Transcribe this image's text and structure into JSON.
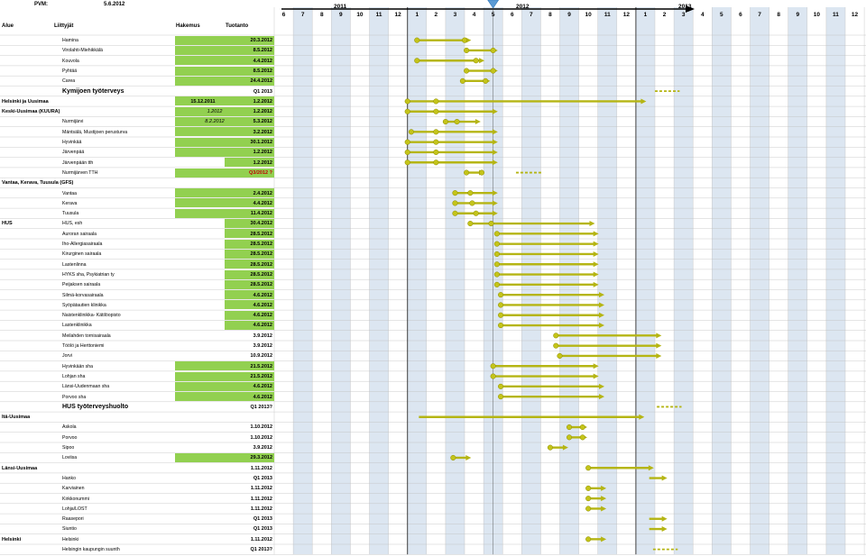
{
  "header": {
    "pvm_label": "PVM:",
    "pvm_value": "5.6.2012",
    "col_alue": "Alue",
    "col_liittyjat": "Liittyjät",
    "col_hakemus": "Hakemus",
    "col_tuotanto": "Tuotanto"
  },
  "timeline": {
    "years": [
      "2011",
      "2012",
      "2013"
    ],
    "months": [
      "6",
      "7",
      "8",
      "9",
      "10",
      "11",
      "12",
      "1",
      "2",
      "3",
      "4",
      "5",
      "6",
      "7",
      "8",
      "9",
      "10",
      "11",
      "12",
      "1",
      "2",
      "3",
      "4",
      "5",
      "6",
      "7",
      "8",
      "9",
      "10",
      "11",
      "12"
    ],
    "current_month_marker": "5"
  },
  "colors": {
    "contract_green": "#92d050",
    "bar_olive": "#b5b514",
    "stripe_blue": "#dce6f1",
    "grid_line": "#bfbfbf",
    "date_red": "#c00000"
  },
  "rows": [
    {
      "region": "",
      "org": "Hamina",
      "hakemus": "",
      "tuotanto": "20.3.2012",
      "green": true,
      "bar": [
        7.0,
        9.8
      ],
      "dots": [
        7.0,
        9.5
      ]
    },
    {
      "region": "",
      "org": "Virolahti-Miehikkälä",
      "hakemus": "",
      "tuotanto": "8.5.2012",
      "green": true,
      "bar": [
        9.5,
        11.2
      ],
      "dots": [
        9.6,
        11.0
      ]
    },
    {
      "region": "",
      "org": "Kouvola",
      "hakemus": "",
      "tuotanto": "4.4.2012",
      "green": true,
      "bar": [
        7.0,
        10.5
      ],
      "dots": [
        7.0,
        10.1
      ]
    },
    {
      "region": "",
      "org": "Pyhtää",
      "hakemus": "",
      "tuotanto": "8.5.2012",
      "green": true,
      "bar": [
        9.5,
        11.2
      ],
      "dots": [
        9.6,
        11.0
      ]
    },
    {
      "region": "",
      "org": "Carea",
      "hakemus": "",
      "tuotanto": "24.4.2012",
      "green": true,
      "bar": [
        9.3,
        10.8
      ],
      "dots": [
        9.4,
        10.6
      ]
    },
    {
      "region": "",
      "org": "Kymijoen työterveys",
      "big": true,
      "hakemus": "",
      "tuotanto": "Q1 2013",
      "green": false,
      "dashed": [
        19.5,
        20.8
      ]
    },
    {
      "region": "Helsinki ja Uusimaa",
      "org": "",
      "hakemus": "15.12.2011",
      "tuotanto": "1.2.2012",
      "green": true,
      "bar": [
        6.5,
        19.0
      ],
      "dots": [
        6.5,
        8.0
      ]
    },
    {
      "region": "Keski-Uusimaa (KUURA)",
      "org": "",
      "hakemus": "1.2012",
      "hakemusItalic": true,
      "tuotanto": "1.2.2012",
      "green": true,
      "bar": [
        6.5,
        11.2
      ],
      "dots": [
        6.5,
        8.0
      ]
    },
    {
      "region": "",
      "org": "Nurmijärvi",
      "hakemus": "8.2.2012",
      "hakemusItalic": true,
      "tuotanto": "5.3.2012",
      "green": true,
      "bar": [
        8.4,
        10.3
      ],
      "dots": [
        8.5,
        9.1
      ]
    },
    {
      "region": "",
      "org": "Mäntsälä, Mustijoen perusturva",
      "hakemus": "",
      "tuotanto": "3.2.2012",
      "green": true,
      "bar": [
        6.7,
        11.2
      ],
      "dots": [
        6.7,
        8.0
      ]
    },
    {
      "region": "",
      "org": "Hyvinkää",
      "hakemus": "",
      "tuotanto": "30.1.2012",
      "green": true,
      "bar": [
        6.5,
        11.2
      ],
      "dots": [
        6.5,
        8.0
      ]
    },
    {
      "region": "",
      "org": "Järvenpää",
      "hakemus": "",
      "tuotanto": "1.2.2012",
      "green": true,
      "bar": [
        6.5,
        11.2
      ],
      "dots": [
        6.5,
        8.0
      ]
    },
    {
      "region": "",
      "org": "Järvenpään tth",
      "hakemus": "",
      "tuotanto": "1.2.2012",
      "green": "partial",
      "bar": [
        6.5,
        11.2
      ],
      "dots": [
        6.5,
        8.0
      ]
    },
    {
      "region": "",
      "org": "Nurmijärven TTH",
      "hakemus": "",
      "tuotanto": "Q3/2012 ?",
      "red": true,
      "green": "partial",
      "bar": [
        9.6,
        10.5
      ],
      "dots": [
        9.6,
        10.4
      ],
      "dashed": [
        12.2,
        13.6
      ]
    },
    {
      "region": "Vantaa, Kerava, Tuusula (GFS)",
      "org": "",
      "hakemus": "",
      "tuotanto": "",
      "green": false
    },
    {
      "region": "",
      "org": "Vantaa",
      "hakemus": "",
      "tuotanto": "2.4.2012",
      "green": true,
      "bar": [
        9.0,
        11.2
      ],
      "dots": [
        9.0,
        9.8
      ]
    },
    {
      "region": "",
      "org": "Kerava",
      "hakemus": "",
      "tuotanto": "4.4.2012",
      "green": true,
      "bar": [
        9.0,
        11.2
      ],
      "dots": [
        9.0,
        9.9
      ]
    },
    {
      "region": "",
      "org": "Tuusula",
      "hakemus": "",
      "tuotanto": "11.4.2012",
      "green": true,
      "bar": [
        9.0,
        11.2
      ],
      "dots": [
        9.0,
        10.1
      ]
    },
    {
      "region": "HUS",
      "org": "HUS, esh",
      "hakemus": "",
      "tuotanto": "30.4.2012",
      "green": "partial",
      "bar": [
        9.8,
        16.3
      ],
      "dots": [
        9.8,
        10.9
      ]
    },
    {
      "region": "",
      "org": "Auroran sairaala",
      "hakemus": "",
      "tuotanto": "28.5.2012",
      "green": "partial",
      "bar": [
        11.2,
        16.5
      ],
      "dots": [
        11.2
      ]
    },
    {
      "region": "",
      "org": "Iho-Allergiasairaala",
      "hakemus": "",
      "tuotanto": "28.5.2012",
      "green": "partial",
      "bar": [
        11.2,
        16.5
      ],
      "dots": [
        11.2
      ]
    },
    {
      "region": "",
      "org": "Kirurginen sairaala",
      "hakemus": "",
      "tuotanto": "28.5.2012",
      "green": "partial",
      "bar": [
        11.2,
        16.5
      ],
      "dots": [
        11.2
      ]
    },
    {
      "region": "",
      "org": "Lastenlinna",
      "hakemus": "",
      "tuotanto": "28.5.2012",
      "green": "partial",
      "bar": [
        11.2,
        16.5
      ],
      "dots": [
        11.2
      ]
    },
    {
      "region": "",
      "org": "HYKS sha, Psykiatrian ty",
      "hakemus": "",
      "tuotanto": "28.5.2012",
      "green": "partial",
      "bar": [
        11.2,
        16.5
      ],
      "dots": [
        11.2
      ]
    },
    {
      "region": "",
      "org": "Peijaksen sairaala",
      "hakemus": "",
      "tuotanto": "28.5.2012",
      "green": "partial",
      "bar": [
        11.2,
        16.5
      ],
      "dots": [
        11.2
      ]
    },
    {
      "region": "",
      "org": "Silmä-korvasairaala",
      "hakemus": "",
      "tuotanto": "4.6.2012",
      "green": "partial",
      "bar": [
        11.4,
        16.8
      ],
      "dots": [
        11.4
      ]
    },
    {
      "region": "",
      "org": "Syöpätautien klinikka",
      "hakemus": "",
      "tuotanto": "4.6.2012",
      "green": "partial",
      "bar": [
        11.4,
        16.8
      ],
      "dots": [
        11.4
      ]
    },
    {
      "region": "",
      "org": "Naistenklinikka- Kätilöopisto",
      "hakemus": "",
      "tuotanto": "4.6.2012",
      "green": "partial",
      "bar": [
        11.4,
        16.8
      ],
      "dots": [
        11.4
      ]
    },
    {
      "region": "",
      "org": "Lastenklinikka",
      "hakemus": "",
      "tuotanto": "4.6.2012",
      "green": "partial",
      "bar": [
        11.4,
        16.8
      ],
      "dots": [
        11.4
      ]
    },
    {
      "region": "",
      "org": "Meilahden tornisairaala",
      "hakemus": "",
      "tuotanto": "3.9.2012",
      "green": false,
      "bar": [
        14.3,
        19.8
      ],
      "dots": [
        14.3
      ]
    },
    {
      "region": "",
      "org": "Töölö ja Herttoniemi",
      "hakemus": "",
      "tuotanto": "3.9.2012",
      "green": false,
      "bar": [
        14.3,
        19.8
      ],
      "dots": [
        14.3
      ]
    },
    {
      "region": "",
      "org": "Jorvi",
      "hakemus": "",
      "tuotanto": "10.9.2012",
      "green": false,
      "bar": [
        14.5,
        19.8
      ],
      "dots": [
        14.5
      ]
    },
    {
      "region": "",
      "org": "Hyvinkään sha",
      "hakemus": "",
      "tuotanto": "21.5.2012",
      "green": true,
      "bar": [
        11.0,
        16.5
      ],
      "dots": [
        11.0
      ]
    },
    {
      "region": "",
      "org": "Lohjan sha",
      "hakemus": "",
      "tuotanto": "21.5.2012",
      "green": true,
      "bar": [
        11.0,
        16.5
      ],
      "dots": [
        11.0
      ]
    },
    {
      "region": "",
      "org": "Länsi-Uudenmaan sha",
      "hakemus": "",
      "tuotanto": "4.6.2012",
      "green": true,
      "bar": [
        11.4,
        16.8
      ],
      "dots": [
        11.4
      ]
    },
    {
      "region": "",
      "org": "Porvoo sha",
      "hakemus": "",
      "tuotanto": "4.6.2012",
      "green": true,
      "bar": [
        11.4,
        16.8
      ],
      "dots": [
        11.4
      ]
    },
    {
      "region": "",
      "org": "HUS työterveyshuolto",
      "big": true,
      "hakemus": "",
      "tuotanto": "Q1 2013?",
      "green": false,
      "dashed": [
        19.6,
        20.9
      ]
    },
    {
      "region": "Itä-Uusimaa",
      "org": "",
      "hakemus": "",
      "tuotanto": "",
      "green": false,
      "bar": [
        7.1,
        18.9
      ],
      "dots": []
    },
    {
      "region": "",
      "org": "Askola",
      "hakemus": "",
      "tuotanto": "1.10.2012",
      "green": false,
      "bar": [
        15.0,
        15.9
      ],
      "dots": [
        15.0,
        15.7
      ]
    },
    {
      "region": "",
      "org": "Porvoo",
      "hakemus": "",
      "tuotanto": "1.10.2012",
      "green": false,
      "bar": [
        15.0,
        15.9
      ],
      "dots": [
        15.0,
        15.7
      ]
    },
    {
      "region": "",
      "org": "Sipoo",
      "hakemus": "",
      "tuotanto": "3.9.2012",
      "green": false,
      "bar": [
        14.0,
        14.9
      ],
      "dots": [
        14.0
      ]
    },
    {
      "region": "",
      "org": "Loviisa",
      "hakemus": "",
      "tuotanto": "29.3.2012",
      "green": true,
      "bar": [
        8.9,
        9.8
      ],
      "dots": [
        8.9
      ]
    },
    {
      "region": "Länsi-Uusimaa",
      "org": "",
      "hakemus": "",
      "tuotanto": "1.11.2012",
      "green": false,
      "bar": [
        16.0,
        19.4
      ],
      "dots": [
        16.0
      ]
    },
    {
      "region": "",
      "org": "Hanko",
      "hakemus": "",
      "tuotanto": "Q1 2013",
      "green": false,
      "bar": [
        19.2,
        20.1
      ],
      "dots": []
    },
    {
      "region": "",
      "org": "Karviainen",
      "hakemus": "",
      "tuotanto": "1.11.2012",
      "green": false,
      "bar": [
        16.0,
        16.9
      ],
      "dots": [
        16.0
      ]
    },
    {
      "region": "",
      "org": "Kirkkonummi",
      "hakemus": "",
      "tuotanto": "1.11.2012",
      "green": false,
      "bar": [
        16.0,
        16.9
      ],
      "dots": [
        16.0
      ]
    },
    {
      "region": "",
      "org": "Lohja/LOST",
      "hakemus": "",
      "tuotanto": "1.11.2012",
      "green": false,
      "bar": [
        16.0,
        16.9
      ],
      "dots": [
        16.0
      ]
    },
    {
      "region": "",
      "org": "Raasepori",
      "hakemus": "",
      "tuotanto": "Q1 2013",
      "green": false,
      "bar": [
        19.2,
        20.1
      ],
      "dots": []
    },
    {
      "region": "",
      "org": "Siuntio",
      "hakemus": "",
      "tuotanto": "Q1 2013",
      "green": false,
      "bar": [
        19.2,
        20.1
      ],
      "dots": []
    },
    {
      "region": "Helsinki",
      "org": "Helsinki",
      "hakemus": "",
      "tuotanto": "1.11.2012",
      "green": false,
      "bar": [
        16.0,
        16.9
      ],
      "dots": [
        16.0
      ]
    },
    {
      "region": "",
      "org": "Helsingin kaupungin suunth",
      "hakemus": "",
      "tuotanto": "Q1 2013?",
      "green": false,
      "dashed": [
        19.4,
        20.7
      ]
    }
  ]
}
